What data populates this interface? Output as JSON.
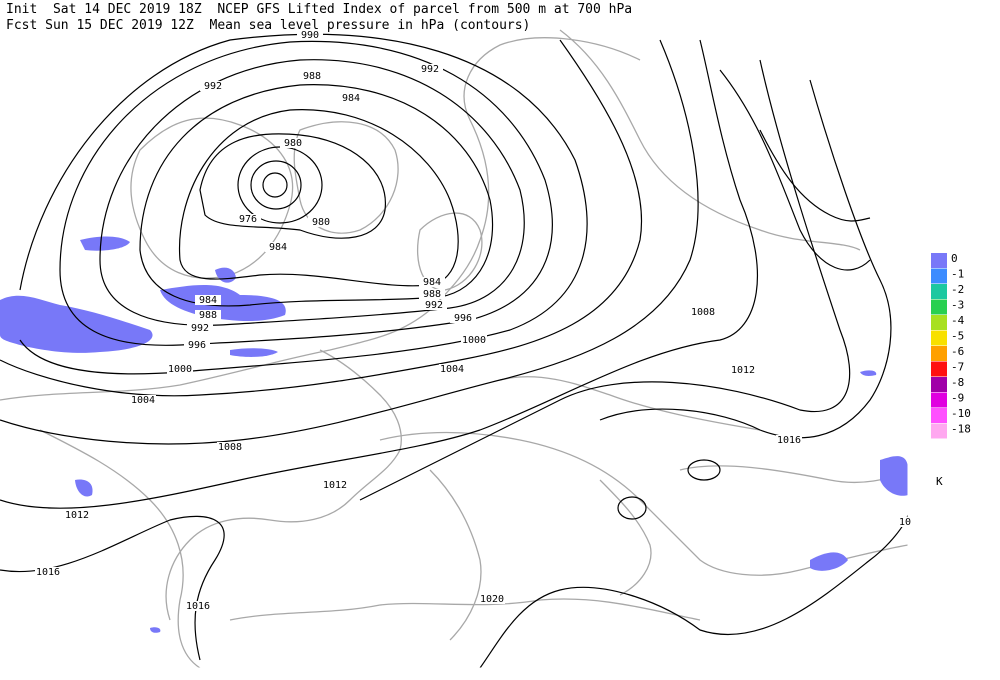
{
  "header": {
    "line1": "Init  Sat 14 DEC 2019 18Z  NCEP GFS Lifted Index of parcel from 500 m at 700 hPa",
    "line2": "Fcst Sun 15 DEC 2019 12Z  Mean sea level pressure in hPa (contours)"
  },
  "contour_labels": [
    "990",
    "992",
    "988",
    "992",
    "984",
    "980",
    "976",
    "980",
    "984",
    "984",
    "988",
    "992",
    "984",
    "988",
    "992",
    "996",
    "996",
    "1000",
    "1000",
    "1004",
    "1004",
    "1008",
    "1012",
    "1008",
    "1012",
    "1012",
    "1016",
    "1016",
    "1016",
    "1020",
    "10"
  ],
  "legend": {
    "entries": [
      {
        "label": "0",
        "color": "#7878f8"
      },
      {
        "label": "-1",
        "color": "#3c8cff"
      },
      {
        "label": "-2",
        "color": "#1cc8a0"
      },
      {
        "label": "-3",
        "color": "#28d050"
      },
      {
        "label": "-4",
        "color": "#a8e020"
      },
      {
        "label": "-5",
        "color": "#f8e000"
      },
      {
        "label": "-6",
        "color": "#ffa000"
      },
      {
        "label": "-7",
        "color": "#ff1010"
      },
      {
        "label": "-8",
        "color": "#a000a8"
      },
      {
        "label": "-9",
        "color": "#e000e0"
      },
      {
        "label": "-10",
        "color": "#ff50ff"
      },
      {
        "label": "-18",
        "color": "#ffa8f0"
      }
    ],
    "unit": "K"
  }
}
